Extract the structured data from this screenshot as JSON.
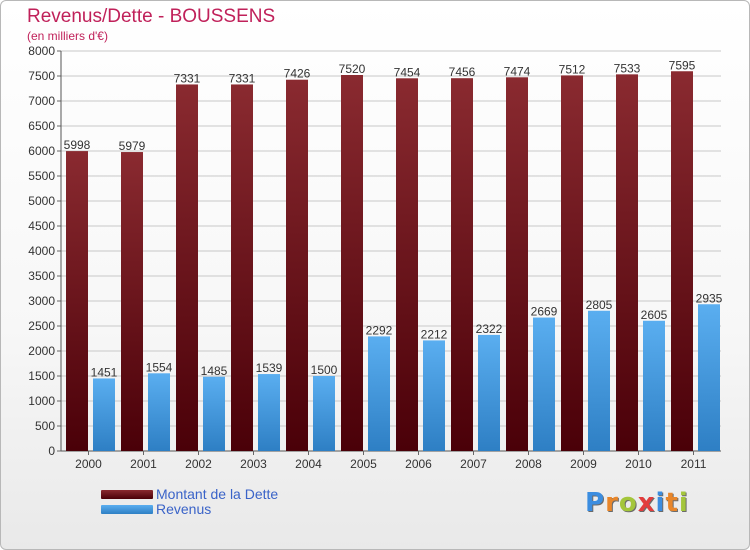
{
  "title": "Revenus/Dette - BOUSSENS",
  "subtitle": "(en milliers d'€)",
  "logo": {
    "text": "Proxiti",
    "letter_colors": [
      "#3b8de0",
      "#e8862a",
      "#a4c63b",
      "#e23c3c",
      "#3b8de0",
      "#e8862a",
      "#a4c63b"
    ]
  },
  "colors": {
    "dette_dark": "#4a0008",
    "dette_light": "#8a2a30",
    "revenus_dark": "#2e7fc4",
    "revenus_light": "#5aaef0",
    "axis_text": "#333333",
    "grid": "#c8c8c8"
  },
  "chart_data": {
    "type": "bar",
    "title": "Revenus/Dette - BOUSSENS",
    "subtitle": "(en milliers d'€)",
    "categories": [
      "2000",
      "2001",
      "2002",
      "2003",
      "2004",
      "2005",
      "2006",
      "2007",
      "2008",
      "2009",
      "2010",
      "2011"
    ],
    "series": [
      {
        "name": "Montant de la Dette",
        "values": [
          5998,
          5979,
          7331,
          7331,
          7426,
          7520,
          7454,
          7456,
          7474,
          7512,
          7533,
          7595
        ]
      },
      {
        "name": "Revenus",
        "values": [
          1451,
          1554,
          1485,
          1539,
          1500,
          2292,
          2212,
          2322,
          2669,
          2805,
          2605,
          2935
        ]
      }
    ],
    "ylim": [
      0,
      8000
    ],
    "yticks": [
      0,
      500,
      1000,
      1500,
      2000,
      2500,
      3000,
      3500,
      4000,
      4500,
      5000,
      5500,
      6000,
      6500,
      7000,
      7500,
      8000
    ],
    "grid": true,
    "legend_position": "bottom-left"
  }
}
